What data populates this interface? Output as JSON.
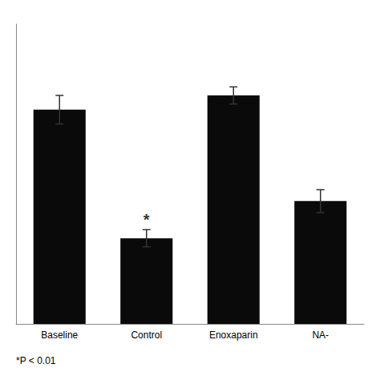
{
  "chart_data": {
    "type": "bar",
    "categories": [
      "Baseline",
      "Control",
      "Enoxaparin",
      "NA-"
    ],
    "values": [
      75,
      30,
      80,
      43
    ],
    "errors": [
      5,
      3,
      3,
      4
    ],
    "color": "#0a0a0a",
    "error_color": "#333333",
    "ylim": [
      0,
      105
    ],
    "grid": false,
    "tick_labels": "x",
    "annotations": [
      {
        "text": "*",
        "category": "Control"
      }
    ],
    "footnote": "*P < 0.01"
  }
}
